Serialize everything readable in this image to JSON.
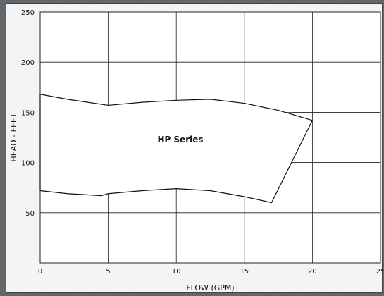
{
  "chart_data": {
    "type": "area",
    "xlabel": "FLOW (GPM)",
    "ylabel": "HEAD - FEET",
    "xlim": [
      0,
      25
    ],
    "ylim": [
      0,
      250
    ],
    "x_ticks": [
      0,
      5,
      10,
      15,
      20,
      25
    ],
    "y_ticks": [
      50,
      100,
      150,
      200,
      250
    ],
    "grid": true,
    "region": {
      "label": "HP Series",
      "upper_curve": [
        [
          0,
          168
        ],
        [
          2,
          163
        ],
        [
          5,
          157
        ],
        [
          7.5,
          160
        ],
        [
          10,
          162
        ],
        [
          12.5,
          163
        ],
        [
          15,
          159
        ],
        [
          17.5,
          152
        ],
        [
          20,
          142
        ]
      ],
      "lower_curve": [
        [
          0,
          72
        ],
        [
          2,
          69
        ],
        [
          4.5,
          67
        ],
        [
          5,
          69
        ],
        [
          7.5,
          72
        ],
        [
          10,
          74
        ],
        [
          12.5,
          72
        ],
        [
          15,
          66
        ],
        [
          17,
          60
        ]
      ],
      "closing_edge": [
        [
          17,
          60
        ],
        [
          20,
          142
        ]
      ],
      "left_edge_bottom": [
        0,
        72
      ]
    },
    "extra_gridlines": {
      "horizontal_segments": [
        {
          "y": 150,
          "x_from": 18.5,
          "x_to": 25
        },
        {
          "y": 100,
          "x_from": 18.5,
          "x_to": 25
        }
      ]
    }
  },
  "colors": {
    "frame_bg": "#f4f4f4",
    "plot_bg": "#ffffff",
    "grid": "#222222",
    "curve": "#111111",
    "page_bg": "#5f6568"
  }
}
